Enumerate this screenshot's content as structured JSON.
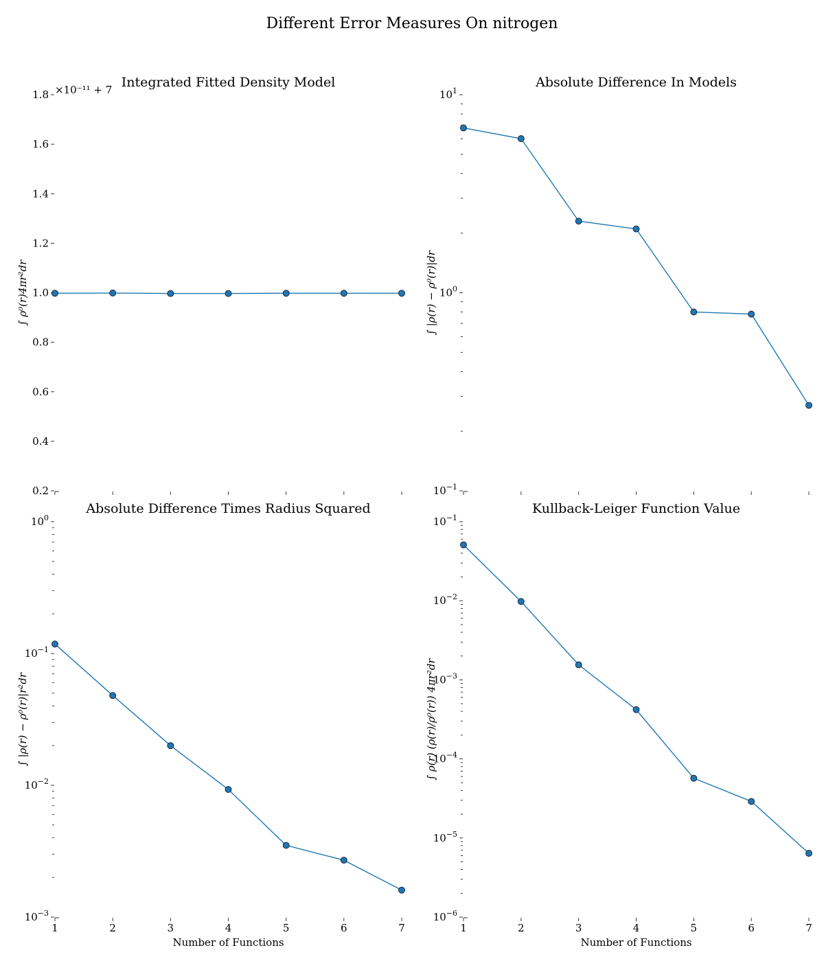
{
  "suptitle": "Different Error Measures On nitrogen",
  "chart_data": [
    {
      "type": "line",
      "title": "Integrated Fitted Density Model",
      "xlabel": "",
      "ylabel": "∫ ρ⁰(r)4πr²dr",
      "offset_text": "×10⁻¹¹ + 7",
      "yscale": "linear",
      "x": [
        1,
        2,
        3,
        4,
        5,
        6,
        7
      ],
      "y": [
        0.998,
        0.999,
        0.997,
        0.997,
        0.998,
        0.998,
        0.998
      ],
      "xlim": [
        1,
        7
      ],
      "ylim": [
        0.2,
        1.8
      ],
      "yticks": [
        0.2,
        0.4,
        0.6,
        0.8,
        1.0,
        1.2,
        1.4,
        1.6,
        1.8
      ],
      "ytick_labels": [
        "0.2",
        "0.4",
        "0.6",
        "0.8",
        "1.0",
        "1.2",
        "1.4",
        "1.6",
        "1.8"
      ],
      "show_xtick_labels": false,
      "grid": false
    },
    {
      "type": "line",
      "title": "Absolute Difference In Models",
      "xlabel": "",
      "ylabel": "∫ |ρ(r) − ρ⁰(r)|dr",
      "yscale": "log",
      "x": [
        1,
        2,
        3,
        4,
        5,
        6,
        7
      ],
      "y": [
        6.8,
        6.0,
        2.3,
        2.1,
        0.8,
        0.78,
        0.27
      ],
      "xlim": [
        1,
        7
      ],
      "ylim": [
        0.1,
        10
      ],
      "yticks": [
        0.1,
        1,
        10
      ],
      "ytick_labels": [
        [
          "10",
          "−1"
        ],
        [
          "10",
          "0"
        ],
        [
          "10",
          "1"
        ]
      ],
      "show_xtick_labels": false,
      "grid": false
    },
    {
      "type": "line",
      "title": "Absolute Difference Times Radius Squared",
      "xlabel": "Number of Functions",
      "ylabel": "∫ |ρ(r) − ρ⁰(r)|r²dr",
      "yscale": "log",
      "x": [
        1,
        2,
        3,
        4,
        5,
        6,
        7
      ],
      "y": [
        0.118,
        0.048,
        0.02,
        0.0093,
        0.0035,
        0.0027,
        0.0016
      ],
      "xlim": [
        1,
        7
      ],
      "ylim": [
        0.001,
        1
      ],
      "yticks": [
        0.001,
        0.01,
        0.1,
        1
      ],
      "ytick_labels": [
        [
          "10",
          "−3"
        ],
        [
          "10",
          "−2"
        ],
        [
          "10",
          "−1"
        ],
        [
          "10",
          "0"
        ]
      ],
      "xtick_labels": [
        "1",
        "2",
        "3",
        "4",
        "5",
        "6",
        "7"
      ],
      "show_xtick_labels": true,
      "grid": false
    },
    {
      "type": "line",
      "title": "Kullback-Leiger Function Value",
      "xlabel": "Number of Functions",
      "ylabel": "∫ ρ(r) (ρ(r)/ρ⁰(r)) 4πr²dr",
      "yscale": "log",
      "x": [
        1,
        2,
        3,
        4,
        5,
        6,
        7
      ],
      "y": [
        0.051,
        0.0098,
        0.00155,
        0.00042,
        5.7e-05,
        2.9e-05,
        6.4e-06
      ],
      "xlim": [
        1,
        7
      ],
      "ylim": [
        1e-06,
        0.1
      ],
      "yticks": [
        1e-06,
        1e-05,
        0.0001,
        0.001,
        0.01,
        0.1
      ],
      "ytick_labels": [
        [
          "10",
          "−6"
        ],
        [
          "10",
          "−5"
        ],
        [
          "10",
          "−4"
        ],
        [
          "10",
          "−3"
        ],
        [
          "10",
          "−2"
        ],
        [
          "10",
          "−1"
        ]
      ],
      "xtick_labels": [
        "1",
        "2",
        "3",
        "4",
        "5",
        "6",
        "7"
      ],
      "show_xtick_labels": true,
      "grid": false
    }
  ],
  "style": {
    "line_color": "#1f77b4",
    "marker": "circle"
  }
}
